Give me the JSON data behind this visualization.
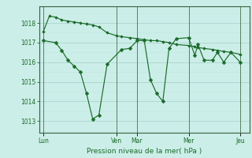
{
  "background_color": "#cceee8",
  "grid_major_color": "#aad4ce",
  "grid_minor_color": "#c0e6e0",
  "line_color": "#1a6b2a",
  "ylabel": "Pression niveau de la mer( hPa )",
  "ylim": [
    1012.4,
    1018.85
  ],
  "yticks": [
    1013,
    1014,
    1015,
    1016,
    1017,
    1018
  ],
  "day_labels": [
    "Lun",
    "Ven",
    "Mar",
    "Mer",
    "Jeu"
  ],
  "day_positions": [
    0.0,
    0.355,
    0.455,
    0.705,
    0.955
  ],
  "xlim": [
    -0.02,
    1.0
  ],
  "series1_x": [
    0.0,
    0.06,
    0.09,
    0.12,
    0.15,
    0.18,
    0.21,
    0.24,
    0.27,
    0.31,
    0.38,
    0.42,
    0.455,
    0.49,
    0.52,
    0.55,
    0.58,
    0.61,
    0.645,
    0.705,
    0.735,
    0.75,
    0.78,
    0.82,
    0.845,
    0.875,
    0.91,
    0.955
  ],
  "series1_y": [
    1017.1,
    1017.0,
    1016.6,
    1016.1,
    1015.8,
    1015.5,
    1014.4,
    1013.1,
    1013.3,
    1015.9,
    1016.65,
    1016.7,
    1017.1,
    1017.1,
    1015.1,
    1014.4,
    1014.0,
    1016.7,
    1017.2,
    1017.25,
    1016.35,
    1016.9,
    1016.1,
    1016.1,
    1016.5,
    1016.0,
    1016.5,
    1016.0
  ],
  "series2_x": [
    0.0,
    0.03,
    0.06,
    0.09,
    0.12,
    0.15,
    0.18,
    0.21,
    0.24,
    0.27,
    0.31,
    0.355,
    0.38,
    0.42,
    0.455,
    0.49,
    0.52,
    0.55,
    0.58,
    0.61,
    0.645,
    0.705,
    0.735,
    0.75,
    0.78,
    0.82,
    0.845,
    0.875,
    0.91,
    0.955
  ],
  "series2_y": [
    1017.55,
    1018.35,
    1018.3,
    1018.15,
    1018.1,
    1018.05,
    1018.0,
    1017.95,
    1017.9,
    1017.8,
    1017.5,
    1017.35,
    1017.3,
    1017.25,
    1017.2,
    1017.15,
    1017.1,
    1017.1,
    1017.05,
    1017.0,
    1016.9,
    1016.85,
    1016.8,
    1016.75,
    1016.7,
    1016.65,
    1016.6,
    1016.55,
    1016.5,
    1016.4
  ]
}
